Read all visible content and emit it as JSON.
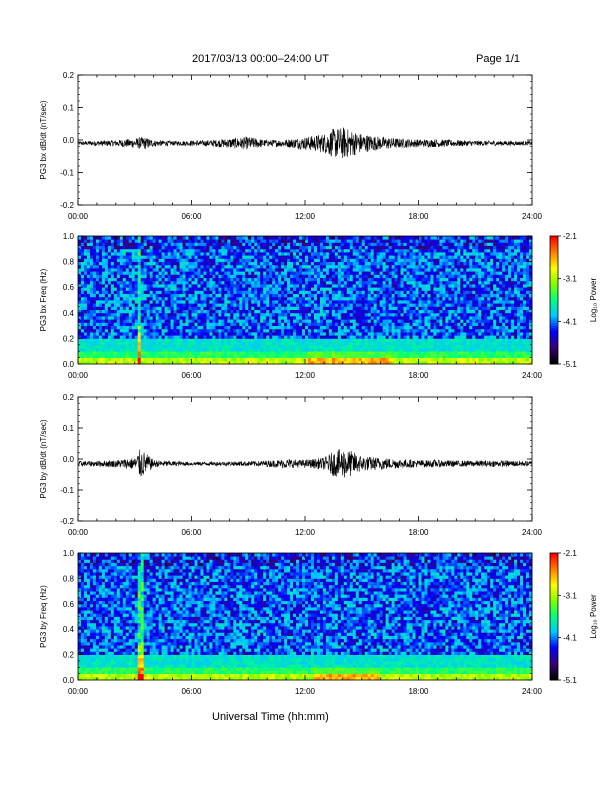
{
  "header": {
    "title": "2017/03/13  00:00–24:00 UT",
    "page": "Page 1/1"
  },
  "xlabel": "Universal Time (hh:mm)",
  "time_ticks": [
    "00:00",
    "06:00",
    "12:00",
    "18:00",
    "24:00"
  ],
  "colorbar": {
    "label": "Log₁₀ Power",
    "ticks": [
      "-2.1",
      "-3.1",
      "-4.1",
      "-5.1"
    ],
    "range": [
      -5.1,
      -2.1
    ],
    "colormap": [
      "#000000",
      "#3a007a",
      "#0000ff",
      "#00c8ff",
      "#00ff80",
      "#80ff00",
      "#ffff00",
      "#ff8000",
      "#ff0000"
    ]
  },
  "chart_data": [
    {
      "type": "line",
      "ylabel": "PG3 bx dB/dt (nT/sec)",
      "xlim": [
        0,
        24
      ],
      "ylim": [
        -0.2,
        0.2
      ],
      "yticks": [
        "0.2",
        "0.1",
        "0.0",
        "-0.1",
        "-0.2"
      ],
      "series": [
        {
          "color": "#000000",
          "x": [
            0,
            1,
            2,
            3,
            3.5,
            4,
            5,
            6,
            7,
            8,
            9,
            10,
            11,
            12,
            13,
            13.5,
            14,
            14.5,
            15,
            16,
            17,
            18,
            19,
            20,
            21,
            22,
            23,
            24
          ],
          "envelope": [
            0.006,
            0.008,
            0.01,
            0.015,
            0.02,
            0.01,
            0.007,
            0.008,
            0.01,
            0.015,
            0.02,
            0.01,
            0.012,
            0.02,
            0.03,
            0.045,
            0.05,
            0.04,
            0.03,
            0.02,
            0.015,
            0.012,
            0.012,
            0.01,
            0.008,
            0.008,
            0.007,
            0.006
          ],
          "offset": -0.01
        }
      ]
    },
    {
      "type": "heatmap",
      "ylabel": "PG3 bx Freq (Hz)",
      "xlim": [
        0,
        24
      ],
      "ylim": [
        0,
        1
      ],
      "yticks": [
        "1.0",
        "0.8",
        "0.6",
        "0.4",
        "0.2",
        "0.0"
      ],
      "zlim": [
        -5.1,
        -2.1
      ],
      "hot_times": [
        3.2
      ],
      "active_window": [
        12,
        16.5
      ]
    },
    {
      "type": "line",
      "ylabel": "PG3 by dB/dt (nT/sec)",
      "xlim": [
        0,
        24
      ],
      "ylim": [
        -0.2,
        0.2
      ],
      "yticks": [
        "0.2",
        "0.1",
        "0.0",
        "-0.1",
        "-0.2"
      ],
      "series": [
        {
          "color": "#000000",
          "x": [
            0,
            1,
            2,
            3,
            3.3,
            4,
            5,
            6,
            7,
            8,
            9,
            10,
            11,
            12,
            13,
            13.5,
            14,
            14.5,
            15,
            16,
            17,
            18,
            19,
            20,
            21,
            22,
            23,
            24
          ],
          "envelope": [
            0.008,
            0.009,
            0.012,
            0.02,
            0.05,
            0.012,
            0.008,
            0.006,
            0.006,
            0.007,
            0.008,
            0.01,
            0.015,
            0.012,
            0.02,
            0.04,
            0.05,
            0.04,
            0.025,
            0.02,
            0.015,
            0.012,
            0.012,
            0.01,
            0.01,
            0.01,
            0.01,
            0.008
          ],
          "offset": -0.015
        }
      ]
    },
    {
      "type": "heatmap",
      "ylabel": "PG3 by Freq (Hz)",
      "xlim": [
        0,
        24
      ],
      "ylim": [
        0,
        1
      ],
      "yticks": [
        "1.0",
        "0.8",
        "0.6",
        "0.4",
        "0.2",
        "0.0"
      ],
      "zlim": [
        -5.1,
        -2.1
      ],
      "hot_times": [
        3.3
      ],
      "active_window": [
        12.5,
        16
      ]
    }
  ]
}
